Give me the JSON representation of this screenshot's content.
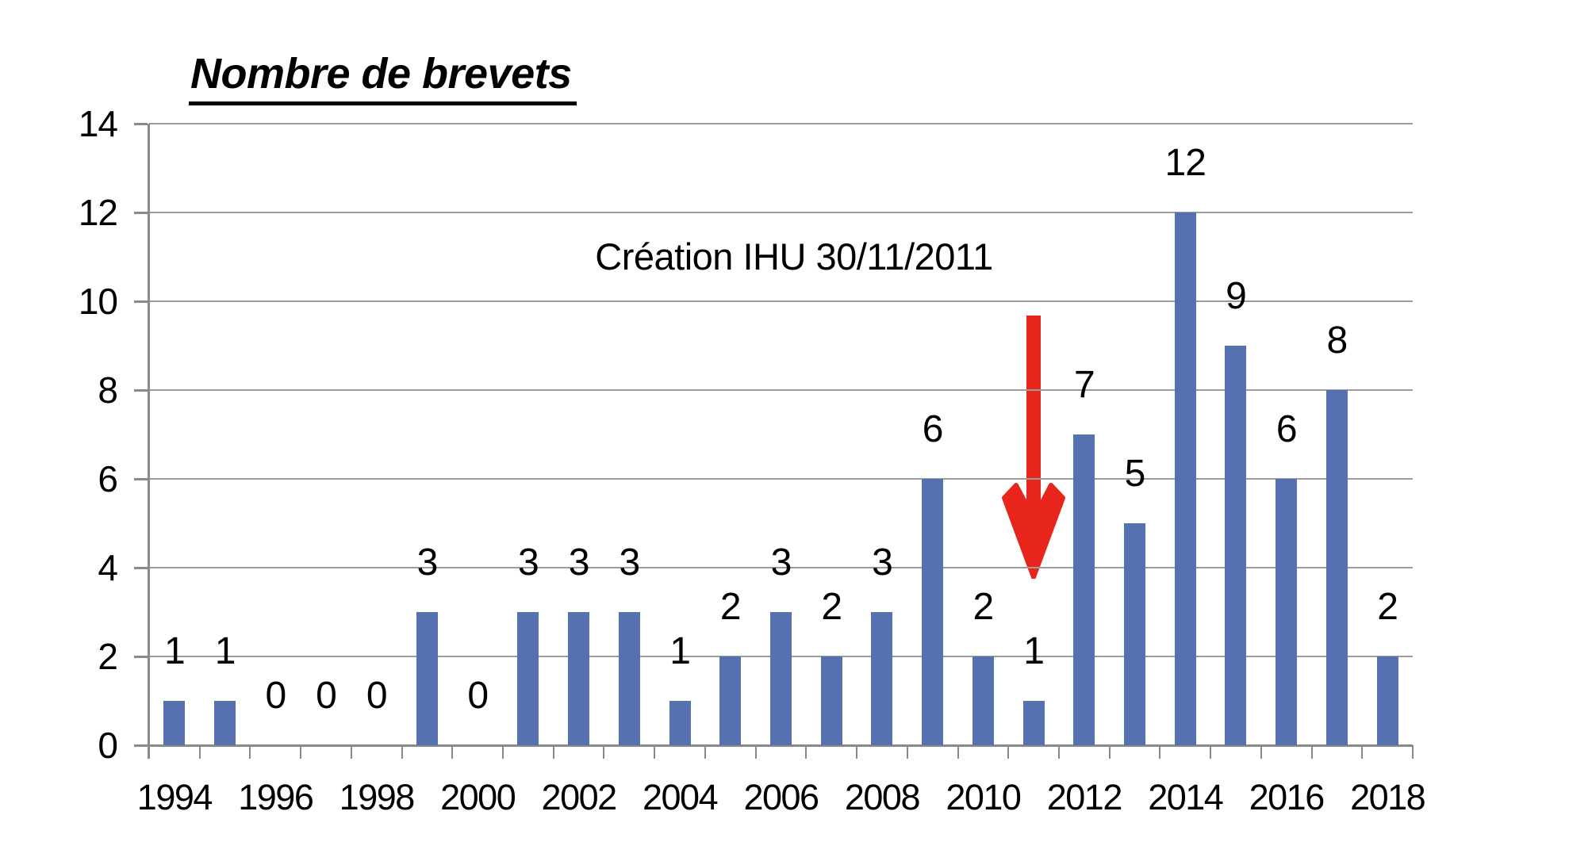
{
  "chart_data": {
    "type": "bar",
    "title": "Nombre de brevets",
    "annotation": "Création IHU 30/11/2011",
    "categories": [
      1994,
      1995,
      1996,
      1997,
      1998,
      1999,
      2000,
      2001,
      2002,
      2003,
      2004,
      2005,
      2006,
      2007,
      2008,
      2009,
      2010,
      2011,
      2012,
      2013,
      2014,
      2015,
      2016,
      2017,
      2018
    ],
    "values": [
      1,
      1,
      0,
      0,
      0,
      3,
      0,
      3,
      3,
      3,
      1,
      2,
      3,
      2,
      3,
      6,
      2,
      1,
      7,
      5,
      12,
      9,
      6,
      8,
      2
    ],
    "data_labels": [
      "1",
      "1",
      "0",
      "0",
      "0",
      "3",
      "0",
      "3",
      "3",
      "3",
      "1",
      "2",
      "3",
      "2",
      "3",
      "6",
      "2",
      "1",
      "7",
      "5",
      "12",
      "9",
      "6",
      "8",
      "2"
    ],
    "x_tick_labels": [
      "1994",
      "1996",
      "1998",
      "2000",
      "2002",
      "2004",
      "2006",
      "2008",
      "2010",
      "2012",
      "2014",
      "2016",
      "2018"
    ],
    "y_ticks": [
      0,
      2,
      4,
      6,
      8,
      10,
      12,
      14
    ],
    "ylim": [
      0,
      14
    ],
    "grid": true,
    "legend": "none",
    "arrow_target_year": 2011,
    "bar_color": "#5571B0",
    "arrow_color": "#E8251C",
    "gridline_color": "#9C9C9C",
    "axis_color": "#8A8A8A",
    "text_color": "#000000"
  }
}
